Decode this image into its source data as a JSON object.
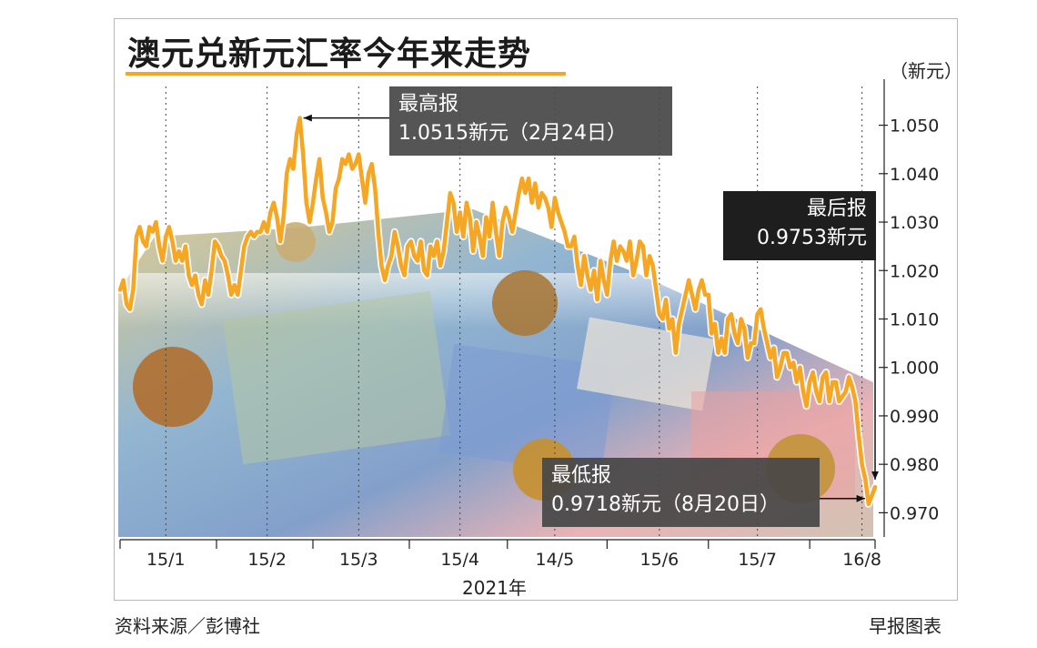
{
  "chart_data": {
    "type": "line",
    "title": "澳元兑新元汇率今年来走势",
    "ylabel": "（新元）",
    "xlabel": "2021年",
    "ylim": [
      0.965,
      1.058
    ],
    "yticks": [
      1.05,
      1.04,
      1.03,
      1.02,
      1.01,
      1.0,
      0.99,
      0.98,
      0.97
    ],
    "ytick_labels": [
      "1.050",
      "1.040",
      "1.030",
      "1.020",
      "1.010",
      "1.000",
      "0.990",
      "0.980",
      "0.970"
    ],
    "xtick_labels": [
      "15/1",
      "15/2",
      "15/3",
      "15/4",
      "14/5",
      "15/6",
      "15/7",
      "16/8"
    ],
    "xtick_days": [
      14,
      45,
      73,
      104,
      133,
      165,
      195,
      227
    ],
    "grid": "vertical dotted lines at x ticks",
    "line_color": "#f5a623",
    "series": [
      {
        "x": [
          0,
          1,
          2,
          3,
          4,
          5,
          6,
          7,
          8,
          9,
          10,
          11,
          12,
          13,
          14,
          15,
          16,
          17,
          18,
          19,
          20,
          21,
          22,
          23,
          24,
          25,
          26,
          27,
          28,
          29,
          30,
          31,
          32,
          33,
          34,
          35,
          36,
          37,
          38,
          39,
          40,
          41,
          42,
          43,
          44,
          45,
          46,
          47,
          48,
          49,
          50,
          51,
          52,
          53,
          54,
          55,
          56,
          57,
          58,
          59,
          60,
          61,
          62,
          63,
          64,
          65,
          66,
          67,
          68,
          69,
          70,
          71,
          72,
          73,
          74,
          75,
          76,
          77,
          78,
          79,
          80,
          81,
          82,
          83,
          84,
          85,
          86,
          87,
          88,
          89,
          90,
          91,
          92,
          93,
          94,
          95,
          96,
          97,
          98,
          99,
          100,
          101,
          102,
          103,
          104,
          105,
          106,
          107,
          108,
          109,
          110,
          111,
          112,
          113,
          114,
          115,
          116,
          117,
          118,
          119,
          120,
          121,
          122,
          123,
          124,
          125,
          126,
          127,
          128,
          129,
          130,
          131,
          132,
          133,
          134,
          135,
          136,
          137,
          138,
          139,
          140,
          141,
          142,
          143,
          144,
          145,
          146,
          147,
          148,
          149,
          150,
          151,
          152,
          153,
          154,
          155,
          156,
          157,
          158,
          159,
          160,
          161,
          162,
          163,
          164,
          165,
          166,
          167,
          168,
          169,
          170,
          171,
          172,
          173,
          174,
          175,
          176,
          177,
          178,
          179,
          180,
          181,
          182,
          183,
          184,
          185,
          186,
          187,
          188,
          189,
          190,
          191,
          192,
          193,
          194,
          195,
          196,
          197,
          198,
          199,
          200,
          201,
          202,
          203,
          204,
          205,
          206,
          207,
          208,
          209,
          210,
          211,
          212,
          213,
          214,
          215,
          216,
          217,
          218,
          219,
          220,
          221,
          222,
          223,
          224,
          225,
          226,
          227,
          228,
          229,
          230,
          231
        ],
        "y": [
          1.016,
          1.018,
          1.013,
          1.012,
          1.016,
          1.027,
          1.029,
          1.026,
          1.025,
          1.029,
          1.028,
          1.03,
          1.025,
          1.022,
          1.027,
          1.029,
          1.026,
          1.022,
          1.024,
          1.022,
          1.025,
          1.019,
          1.017,
          1.019,
          1.015,
          1.013,
          1.018,
          1.015,
          1.02,
          1.026,
          1.025,
          1.023,
          1.022,
          1.019,
          1.015,
          1.017,
          1.015,
          1.02,
          1.025,
          1.027,
          1.028,
          1.027,
          1.028,
          1.028,
          1.03,
          1.028,
          1.032,
          1.034,
          1.031,
          1.026,
          1.031,
          1.04,
          1.043,
          1.041,
          1.048,
          1.0515,
          1.044,
          1.034,
          1.03,
          1.034,
          1.039,
          1.043,
          1.035,
          1.032,
          1.028,
          1.03,
          1.037,
          1.039,
          1.043,
          1.042,
          1.044,
          1.041,
          1.042,
          1.044,
          1.039,
          1.034,
          1.04,
          1.042,
          1.037,
          1.028,
          1.021,
          1.018,
          1.021,
          1.023,
          1.028,
          1.025,
          1.021,
          1.019,
          1.025,
          1.026,
          1.023,
          1.022,
          1.026,
          1.02,
          1.019,
          1.025,
          1.023,
          1.026,
          1.021,
          1.024,
          1.03,
          1.036,
          1.034,
          1.028,
          1.032,
          1.027,
          1.034,
          1.031,
          1.024,
          1.03,
          1.027,
          1.023,
          1.031,
          1.027,
          1.034,
          1.028,
          1.023,
          1.03,
          1.033,
          1.031,
          1.028,
          1.032,
          1.036,
          1.039,
          1.036,
          1.039,
          1.034,
          1.038,
          1.033,
          1.036,
          1.035,
          1.033,
          1.029,
          1.035,
          1.032,
          1.03,
          1.028,
          1.025,
          1.025,
          1.027,
          1.021,
          1.017,
          1.023,
          1.019,
          1.016,
          1.02,
          1.014,
          1.022,
          1.018,
          1.015,
          1.022,
          1.026,
          1.022,
          1.025,
          1.024,
          1.022,
          1.026,
          1.019,
          1.022,
          1.026,
          1.025,
          1.019,
          1.023,
          1.021,
          1.016,
          1.011,
          1.01,
          1.014,
          1.008,
          1.01,
          1.003,
          1.009,
          1.012,
          1.015,
          1.018,
          1.015,
          1.012,
          1.016,
          1.018,
          1.015,
          1.015,
          1.007,
          1.009,
          1.003,
          1.006,
          1.003,
          1.01,
          1.011,
          1.007,
          1.005,
          1.01,
          1.008,
          1.002,
          1.005,
          1.005,
          1.011,
          1.012,
          1.008,
          1.005,
          1.002,
          1.004,
          0.998,
          1.0,
          1.003,
          1.003,
          1.0,
          1.001,
          0.997,
          1.0,
          0.995,
          0.992,
          0.997,
          0.999,
          0.995,
          0.993,
          0.998,
          0.999,
          0.993,
          0.997,
          0.997,
          0.993,
          0.994,
          0.995,
          0.998,
          0.996,
          0.993,
          0.986,
          0.98,
          0.977,
          0.9718,
          0.9735,
          0.9753
        ]
      }
    ],
    "annotations": [
      {
        "label": "最高报",
        "value_text": "1.0515新元（2月24日）"
      },
      {
        "label": "最后报",
        "value_text": "0.9753新元"
      },
      {
        "label": "最低报",
        "value_text": "0.9718新元（8月20日）"
      }
    ]
  },
  "footer": {
    "source": "资料来源／彭博社",
    "credit": "早报图表"
  }
}
